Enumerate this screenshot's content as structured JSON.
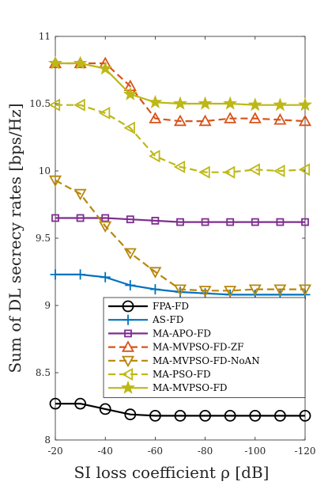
{
  "chart_data": {
    "type": "line",
    "xlabel": "SI loss coefficient ρ [dB]",
    "ylabel": "Sum of DL secrecy rates [bps/Hz]",
    "x": [
      -20,
      -30,
      -40,
      -50,
      -60,
      -70,
      -80,
      -90,
      -100,
      -110,
      -120
    ],
    "xticks": [
      -20,
      -40,
      -60,
      -80,
      -100,
      -120
    ],
    "yticks": [
      8,
      8.5,
      9,
      9.5,
      10,
      10.5,
      11
    ],
    "xlim": [
      -20,
      -120
    ],
    "ylim": [
      8,
      11
    ],
    "grid": false,
    "legend_position": "lower-right",
    "series": [
      {
        "name": "FPA-FD",
        "color": "#000000",
        "dash": false,
        "marker": "circle",
        "values": [
          8.27,
          8.27,
          8.23,
          8.19,
          8.18,
          8.18,
          8.18,
          8.18,
          8.18,
          8.18,
          8.18
        ]
      },
      {
        "name": "AS-FD",
        "color": "#0072BD",
        "dash": false,
        "marker": "plus",
        "values": [
          9.23,
          9.23,
          9.21,
          9.15,
          9.12,
          9.1,
          9.09,
          9.08,
          9.08,
          9.08,
          9.08
        ]
      },
      {
        "name": "MA-APO-FD",
        "color": "#7E2F8E",
        "dash": false,
        "marker": "square",
        "values": [
          9.65,
          9.65,
          9.65,
          9.64,
          9.63,
          9.62,
          9.62,
          9.62,
          9.62,
          9.62,
          9.62
        ]
      },
      {
        "name": "MA-MVPSO-FD-ZF",
        "color": "#D95319",
        "dash": true,
        "marker": "triangle-up",
        "values": [
          10.8,
          10.8,
          10.8,
          10.63,
          10.39,
          10.37,
          10.37,
          10.39,
          10.39,
          10.38,
          10.37
        ]
      },
      {
        "name": "MA-MVPSO-FD-NoAN",
        "color": "#B8860B",
        "dash": true,
        "marker": "triangle-down",
        "values": [
          9.93,
          9.83,
          9.59,
          9.39,
          9.25,
          9.12,
          9.11,
          9.11,
          9.12,
          9.12,
          9.12
        ]
      },
      {
        "name": "MA-PSO-FD",
        "color": "#BDB816",
        "dash": true,
        "marker": "triangle-left",
        "values": [
          10.49,
          10.49,
          10.43,
          10.32,
          10.11,
          10.03,
          9.99,
          9.99,
          10.01,
          10.0,
          10.01
        ]
      },
      {
        "name": "MA-MVPSO-FD",
        "color": "#BDB816",
        "dash": false,
        "marker": "star",
        "values": [
          10.8,
          10.8,
          10.76,
          10.57,
          10.51,
          10.5,
          10.5,
          10.5,
          10.49,
          10.49,
          10.49
        ]
      }
    ]
  }
}
